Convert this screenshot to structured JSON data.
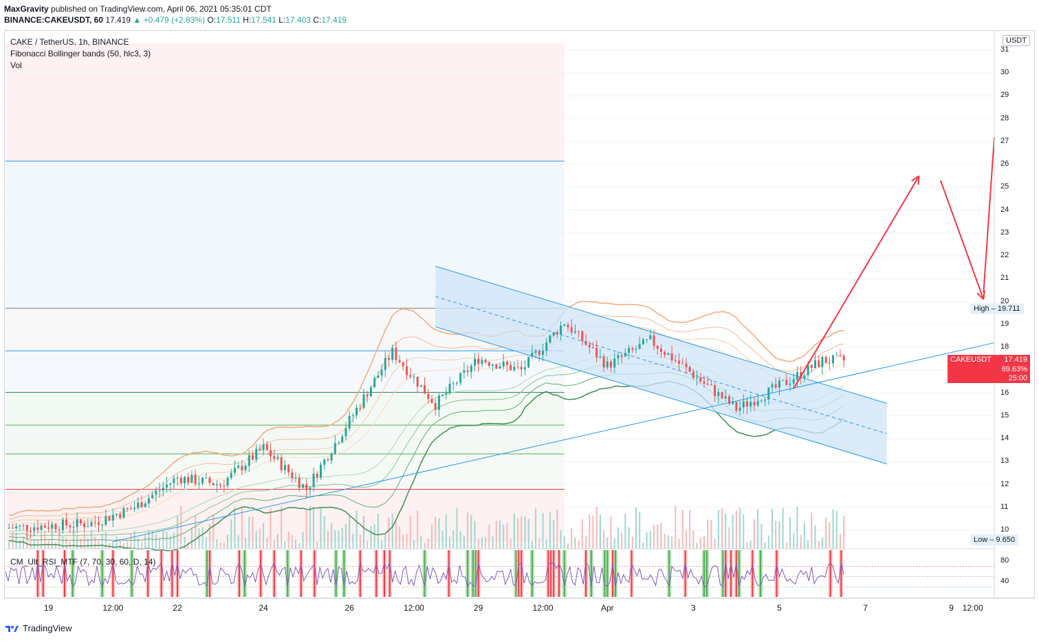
{
  "header": {
    "publisher": "MaxGravity",
    "published_text": "published on TradingView.com, April 06, 2021 05:35:01 CDT",
    "symbol": "BINANCE:CAKEUSDT, 60",
    "last": "17.419",
    "change": "+0.479 (+2.83%)",
    "open_label": "O:",
    "open": "17.511",
    "high_label": "H:",
    "high": "17.541",
    "low_label": "L:",
    "low": "17.403",
    "close_label": "C:",
    "close": "17.419"
  },
  "legend": {
    "title": "CAKE / TetherUS, 1h, BINANCE",
    "indicator1": "Fibonacci Bollinger bands (50, hlc3, 3)",
    "indicator2": "Vol"
  },
  "rsi": {
    "label": "CM_Ult_RSI_MTF (7, 70, 30, 60, D, 14)",
    "ticks": [
      "80",
      "40"
    ]
  },
  "price_axis": {
    "unit": "USDT",
    "ticks": [
      "31",
      "30",
      "29",
      "28",
      "27",
      "26",
      "25",
      "24",
      "23",
      "22",
      "21",
      "20",
      "19",
      "18",
      "17",
      "16",
      "15",
      "14",
      "13",
      "12",
      "11",
      "10"
    ],
    "high_label": "High",
    "high_value": "19.711",
    "low_label": "Low",
    "low_value": "9.650",
    "price_tag_symbol": "CAKEUSDT",
    "price_tag_value": "17.419",
    "price_tag_pct": "69.63%",
    "price_tag_timer": "25:00"
  },
  "time_axis": {
    "ticks": [
      "19",
      "12:00",
      "22",
      "24",
      "26",
      "12:00",
      "29",
      "12:00",
      "Apr",
      "3",
      "5",
      "7",
      "9",
      "12:00"
    ]
  },
  "footer": {
    "brand": "TradingView"
  },
  "colors": {
    "up": "#26a69a",
    "down": "#ef5350",
    "channel_fill": "#cfe4f8",
    "channel_line": "#2196f3",
    "arrow": "#f23645",
    "rsi_line": "#7e57c2"
  },
  "chart_data": {
    "type": "candlestick",
    "title": "CAKE / TetherUS, 1h, BINANCE",
    "ylim": [
      9.5,
      31.3
    ],
    "x_range": [
      "2021-03-18",
      "2021-04-10"
    ],
    "close_path": [
      {
        "t": "2021-03-18",
        "price": 10.1
      },
      {
        "t": "2021-03-20",
        "price": 10.3
      },
      {
        "t": "2021-03-21",
        "price": 11.0
      },
      {
        "t": "2021-03-22",
        "price": 12.3
      },
      {
        "t": "2021-03-23",
        "price": 12.0
      },
      {
        "t": "2021-03-24",
        "price": 13.6
      },
      {
        "t": "2021-03-25",
        "price": 11.8
      },
      {
        "t": "2021-03-26",
        "price": 14.8
      },
      {
        "t": "2021-03-27",
        "price": 17.8
      },
      {
        "t": "2021-03-28",
        "price": 15.5
      },
      {
        "t": "2021-03-29",
        "price": 17.5
      },
      {
        "t": "2021-03-30",
        "price": 17.0
      },
      {
        "t": "2021-03-31",
        "price": 19.1
      },
      {
        "t": "2021-04-01",
        "price": 17.2
      },
      {
        "t": "2021-04-02",
        "price": 18.3
      },
      {
        "t": "2021-04-03",
        "price": 16.8
      },
      {
        "t": "2021-04-04",
        "price": 15.3
      },
      {
        "t": "2021-04-05",
        "price": 16.3
      },
      {
        "t": "2021-04-06",
        "price": 17.419
      }
    ],
    "levels": {
      "high": 19.711,
      "low": 9.65
    },
    "fib_levels": [
      26.15,
      19.71,
      17.85,
      16.03,
      14.6,
      13.34,
      11.79
    ],
    "annotations": [
      "descending channel",
      "ascending trendline",
      "projection arrows"
    ]
  }
}
